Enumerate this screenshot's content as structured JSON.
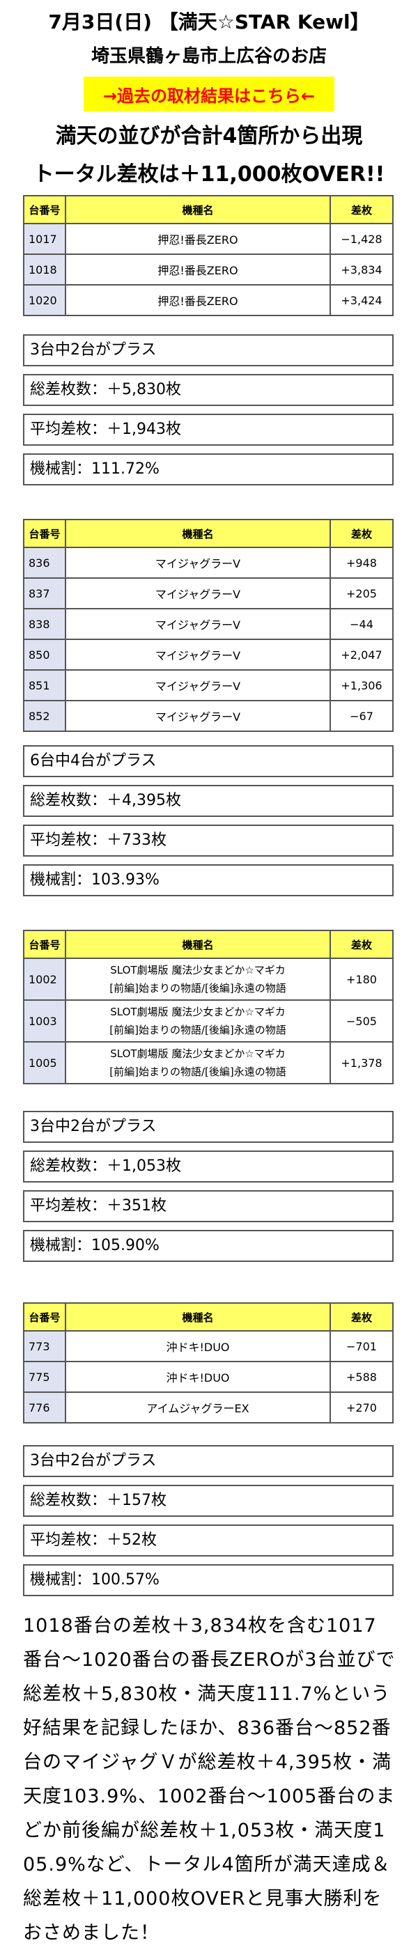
{
  "header": {
    "line1": "7月3日(日) 【満天☆STAR Kewl】",
    "line2": "埼玉県鶴ヶ島市上広谷のお店",
    "link": "→過去の取材結果はこちら←",
    "lead1": "満天の並びが合計4箇所から出現",
    "lead2": "トータル差枚は＋11,000枚OVER!!"
  },
  "table_headers": {
    "num": "台番号",
    "name": "機種名",
    "diff": "差枚"
  },
  "tables": [
    {
      "rows": [
        {
          "num": "1017",
          "name": "押忍!番長ZERO",
          "diff": "−1,428"
        },
        {
          "num": "1018",
          "name": "押忍!番長ZERO",
          "diff": "+3,834"
        },
        {
          "num": "1020",
          "name": "押忍!番長ZERO",
          "diff": "+3,424"
        }
      ],
      "stats": [
        "3台中2台がプラス",
        "総差枚数：＋5,830枚",
        "平均差枚：＋1,943枚",
        "機械割：111.72%"
      ]
    },
    {
      "rows": [
        {
          "num": "836",
          "name": "マイジャグラーV",
          "diff": "+948"
        },
        {
          "num": "837",
          "name": "マイジャグラーV",
          "diff": "+205"
        },
        {
          "num": "838",
          "name": "マイジャグラーV",
          "diff": "−44"
        },
        {
          "num": "850",
          "name": "マイジャグラーV",
          "diff": "+2,047"
        },
        {
          "num": "851",
          "name": "マイジャグラーV",
          "diff": "+1,306"
        },
        {
          "num": "852",
          "name": "マイジャグラーV",
          "diff": "−67"
        }
      ],
      "stats": [
        "6台中4台がプラス",
        "総差枚数：＋4,395枚",
        "平均差枚：＋733枚",
        "機械割：103.93%"
      ]
    },
    {
      "rows": [
        {
          "num": "1002",
          "name_a": "SLOT劇場版 魔法少女まどか☆マギカ",
          "name_b": "[前編]始まりの物語/[後編]永遠の物語",
          "diff": "+180"
        },
        {
          "num": "1003",
          "name_a": "SLOT劇場版 魔法少女まどか☆マギカ",
          "name_b": "[前編]始まりの物語/[後編]永遠の物語",
          "diff": "−505"
        },
        {
          "num": "1005",
          "name_a": "SLOT劇場版 魔法少女まどか☆マギカ",
          "name_b": "[前編]始まりの物語/[後編]永遠の物語",
          "diff": "+1,378"
        }
      ],
      "stats": [
        "3台中2台がプラス",
        "総差枚数：＋1,053枚",
        "平均差枚：＋351枚",
        "機械割：105.90%"
      ]
    },
    {
      "rows": [
        {
          "num": "773",
          "name": "沖ドキ!DUO",
          "diff": "−701"
        },
        {
          "num": "775",
          "name": "沖ドキ!DUO",
          "diff": "+588"
        },
        {
          "num": "776",
          "name": "アイムジャグラーEX",
          "diff": "+270"
        }
      ],
      "stats": [
        "3台中2台がプラス",
        "総差枚数：＋157枚",
        "平均差枚：＋52枚",
        "機械割：100.57%"
      ]
    }
  ],
  "summary": "1018番台の差枚＋3,834枚を含む1017番台〜1020番台の番長ZEROが3台並びで総差枚＋5,830枚・満天度111.7%という好結果を記録したほか、836番台〜852番台のマイジャグＶが総差枚＋4,395枚・満天度103.9%、1002番台〜1005番台のまどか前後編が総差枚＋1,053枚・満天度105.9%など、トータル4箇所が満天達成＆総差枚＋11,000枚OVERと見事大勝利をおさめました！"
}
